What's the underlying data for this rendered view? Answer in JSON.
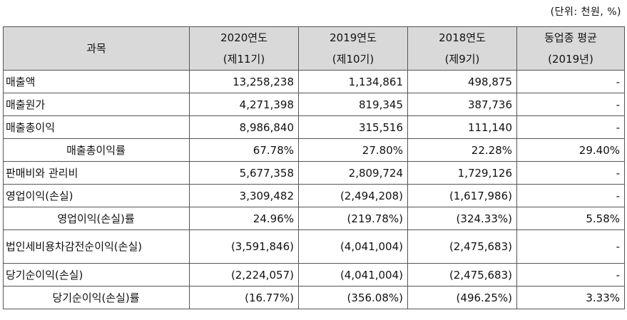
{
  "unit_label": "(단위: 천원, %)",
  "header": {
    "account": "과목",
    "columns": [
      {
        "line1": "2020연도",
        "line2": "(제11기)"
      },
      {
        "line1": "2019연도",
        "line2": "(제10기)"
      },
      {
        "line1": "2018연도",
        "line2": "(제9기)"
      },
      {
        "line1": "동업종 평균",
        "line2": "(2019년)"
      }
    ]
  },
  "rows": [
    {
      "label": "매출액",
      "indent": false,
      "tall": false,
      "values": [
        "13,258,238",
        "1,134,861",
        "498,875",
        "-"
      ]
    },
    {
      "label": "매출원가",
      "indent": false,
      "tall": false,
      "values": [
        "4,271,398",
        "819,345",
        "387,736",
        "-"
      ]
    },
    {
      "label": "매출총이익",
      "indent": false,
      "tall": false,
      "values": [
        "8,986,840",
        "315,516",
        "111,140",
        "-"
      ]
    },
    {
      "label": "매출총이익률",
      "indent": true,
      "tall": false,
      "values": [
        "67.78%",
        "27.80%",
        "22.28%",
        "29.40%"
      ]
    },
    {
      "label": "판매비와 관리비",
      "indent": false,
      "tall": false,
      "values": [
        "5,677,358",
        "2,809,724",
        "1,729,126",
        "-"
      ]
    },
    {
      "label": "영업이익(손실)",
      "indent": false,
      "tall": false,
      "values": [
        "3,309,482",
        "(2,494,208)",
        "(1,617,986)",
        "-"
      ]
    },
    {
      "label": "영업이익(손실)률",
      "indent": true,
      "tall": false,
      "values": [
        "24.96%",
        "(219.78%)",
        "(324.33%)",
        "5.58%"
      ]
    },
    {
      "label": "법인세비용차감전순이익(손실)",
      "indent": false,
      "tall": true,
      "values": [
        "(3,591,846)",
        "(4,041,004)",
        "(2,475,683)",
        "-"
      ]
    },
    {
      "label": "당기순이익(손실)",
      "indent": false,
      "tall": false,
      "values": [
        "(2,224,057)",
        "(4,041,004)",
        "(2,475,683)",
        "-"
      ]
    },
    {
      "label": "당기순이익(손실)률",
      "indent": true,
      "tall": false,
      "values": [
        "(16.77%)",
        "(356.08%)",
        "(496.25%)",
        "3.33%"
      ]
    }
  ]
}
